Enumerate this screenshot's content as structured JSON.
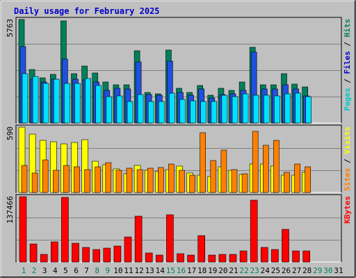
{
  "chart_data": {
    "type": "bar",
    "title": "Daily usage for February 2025",
    "days": [
      "1",
      "2",
      "3",
      "4",
      "5",
      "6",
      "7",
      "8",
      "9",
      "10",
      "11",
      "12",
      "13",
      "14",
      "15",
      "16",
      "17",
      "18",
      "19",
      "20",
      "21",
      "22",
      "23",
      "24",
      "25",
      "26",
      "27",
      "28",
      "29",
      "30",
      "31"
    ],
    "weekend_days": [
      "1",
      "2",
      "8",
      "9",
      "15",
      "16",
      "22",
      "23",
      "29",
      "30"
    ],
    "panels": [
      {
        "id": "top",
        "ymax_label": "5763",
        "ymax": 5763,
        "side_label": [
          {
            "text": "Pages",
            "color": "#00c8c8"
          },
          {
            "text": " / ",
            "color": "#000000"
          },
          {
            "text": "Files",
            "color": "#0000c8"
          },
          {
            "text": " / ",
            "color": "#000000"
          },
          {
            "text": "Hits",
            "color": "#00805c"
          }
        ],
        "series": [
          {
            "name": "Hits",
            "color": "#00805c",
            "values": [
              5763,
              2970,
              2525,
              2700,
              5670,
              2745,
              3180,
              2780,
              2300,
              2125,
              2125,
              4020,
              1715,
              1625,
              4060,
              1950,
              1715,
              2075,
              1530,
              1950,
              1800,
              2300,
              4200,
              2125,
              2125,
              2745,
              2170,
              2010
            ]
          },
          {
            "name": "Files",
            "color": "#2050e0",
            "values": [
              4250,
              2445,
              2300,
              2445,
              3550,
              2445,
              2390,
              2300,
              1800,
              1950,
              1890,
              3390,
              1570,
              1540,
              3440,
              1715,
              1540,
              1890,
              1390,
              1600,
              1625,
              1800,
              3930,
              1900,
              1900,
              2125,
              1885,
              1490
            ]
          },
          {
            "name": "Pages",
            "color": "#00e0ff",
            "values": [
              2745,
              2610,
              2220,
              2430,
              2190,
              2220,
              2460,
              2080,
              1480,
              1510,
              1200,
              1585,
              1210,
              1210,
              1680,
              1320,
              1240,
              1210,
              1210,
              1540,
              1475,
              1640,
              1540,
              1530,
              1510,
              1610,
              1650,
              1480
            ]
          }
        ]
      },
      {
        "id": "middle",
        "ymax_label": "590",
        "ymax": 590,
        "side_label": [
          {
            "text": "Sites",
            "color": "#ff8000"
          },
          {
            "text": " / ",
            "color": "#000000"
          },
          {
            "text": "Visits",
            "color": "#ffff00"
          }
        ],
        "series": [
          {
            "name": "Visits",
            "color": "#ffff00",
            "values": [
              590,
              530,
              470,
              460,
              440,
              450,
              480,
              280,
              250,
              215,
              170,
              245,
              200,
              190,
              205,
              240,
              175,
              160,
              145,
              230,
              200,
              165,
              260,
              255,
              240,
              160,
              160,
              185
            ]
          },
          {
            "name": "Sites",
            "color": "#ff8000",
            "values": [
              245,
              175,
              295,
              200,
              245,
              230,
              210,
              230,
              270,
              200,
              220,
              205,
              220,
              225,
              255,
              200,
              160,
              540,
              290,
              385,
              205,
              170,
              550,
              425,
              470,
              185,
              260,
              235
            ]
          }
        ]
      },
      {
        "id": "bottom",
        "ymax_label": "137466",
        "ymax": 137466,
        "side_label": [
          {
            "text": "KBytes",
            "color": "#ff0000"
          }
        ],
        "series": [
          {
            "name": "KBytes",
            "color": "#ff0000",
            "values": [
              137466,
              38000,
              16000,
              42000,
              136000,
              40000,
              31000,
              26000,
              29000,
              33000,
              52000,
              97000,
              19000,
              14000,
              100000,
              18000,
              14000,
              55000,
              15000,
              16000,
              16000,
              23000,
              130000,
              31000,
              27000,
              69000,
              23000,
              24000
            ]
          }
        ]
      }
    ]
  }
}
